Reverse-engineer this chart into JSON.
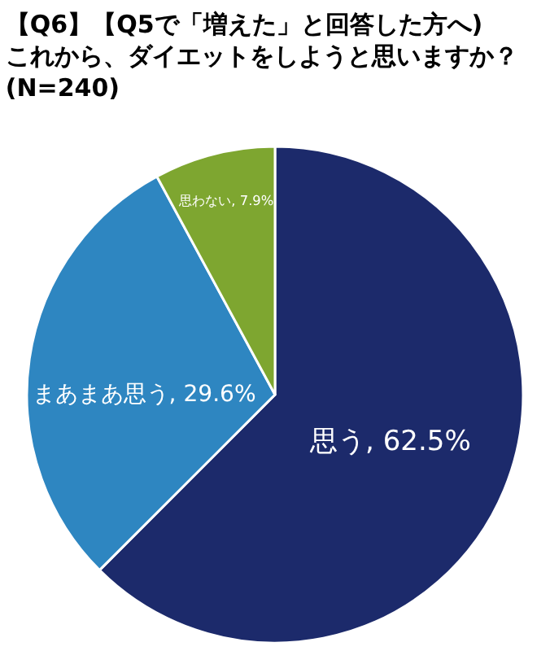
{
  "chart_data": {
    "type": "pie",
    "title": "【Q6】【Q5で「増えた」と回答した方へ)これから、ダイエットをしようと思いますか？(N=240)",
    "categories": [
      "思う",
      "まあまあ思う",
      "思わない"
    ],
    "values": [
      62.5,
      29.6,
      7.9
    ],
    "colors": [
      "#1c2a6b",
      "#2e86c1",
      "#7ea630"
    ],
    "value_labels": [
      "62.5%",
      "29.6%",
      "7.9%"
    ],
    "legend": false
  }
}
